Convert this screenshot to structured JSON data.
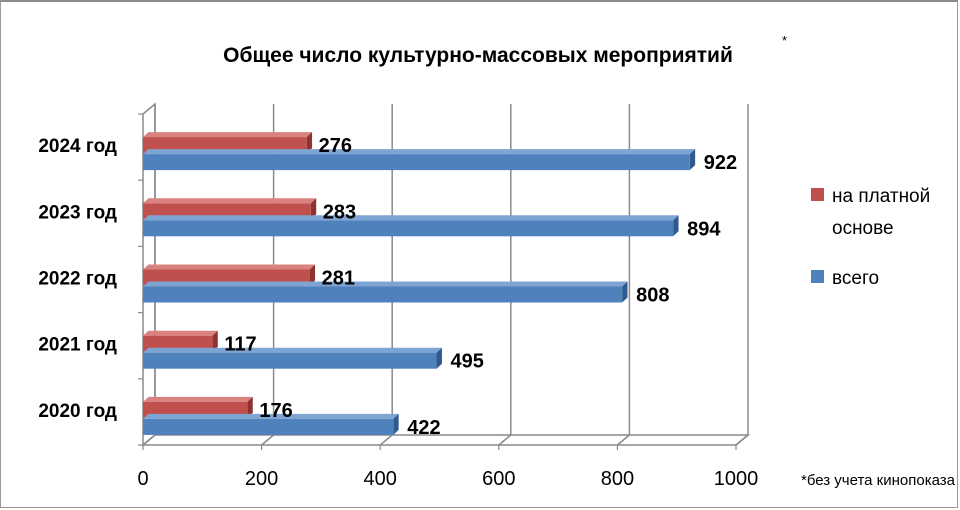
{
  "chart_data": {
    "type": "bar",
    "orientation": "horizontal",
    "title": "Общее число культурно-массовых мероприятий",
    "title_marker": "*",
    "footnote": "*без учета кинопоказа",
    "categories": [
      "2024 год",
      "2023 год",
      "2022 год",
      "2021 год",
      "2020 год"
    ],
    "series": [
      {
        "name": "на платной основе",
        "values": [
          276,
          283,
          281,
          117,
          176
        ],
        "color": "#c0504d"
      },
      {
        "name": "всего",
        "values": [
          922,
          894,
          808,
          495,
          422
        ],
        "color": "#4f81bd"
      }
    ],
    "xlim": [
      0,
      1000
    ],
    "xticks": [
      "0",
      "200",
      "400",
      "600",
      "800",
      "1000"
    ],
    "grid": true,
    "legend": "right",
    "xlabel": "",
    "ylabel": ""
  }
}
